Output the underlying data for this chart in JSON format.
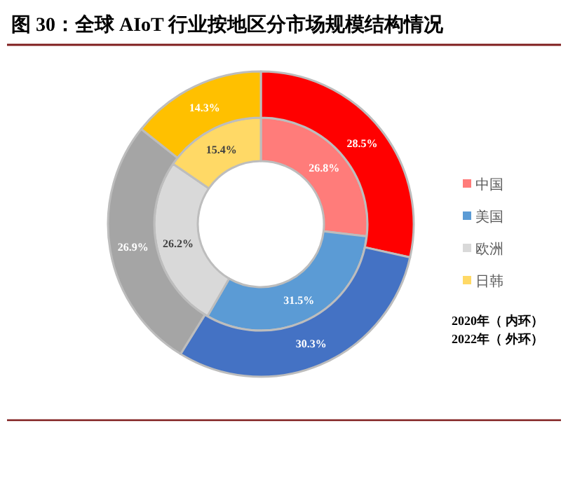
{
  "chart_data": {
    "type": "donut",
    "title": "图 30：全球 AIoT 行业按地区分市场规模结构情况",
    "categories": [
      "中国",
      "美国",
      "欧洲",
      "日韩"
    ],
    "series": [
      {
        "colors": [
          "#ff7c7a",
          "#5b9bd5",
          "#d9d9d9",
          "#ffd966"
        ],
        "values": [
          26.8,
          31.5,
          26.2,
          15.4
        ],
        "value_labels": [
          "26.8%",
          "31.5%",
          "26.2%",
          "15.4%"
        ]
      },
      {
        "colors": [
          "#ff0000",
          "#4472c4",
          "#a5a5a5",
          "#ffc000"
        ],
        "values": [
          28.5,
          30.3,
          26.9,
          14.3
        ],
        "value_labels": [
          "28.5%",
          "30.3%",
          "26.9%",
          "14.3%"
        ]
      }
    ],
    "legend": "right",
    "annotations": [
      "2020年（ 内环）",
      "2022年（ 外环）"
    ]
  }
}
